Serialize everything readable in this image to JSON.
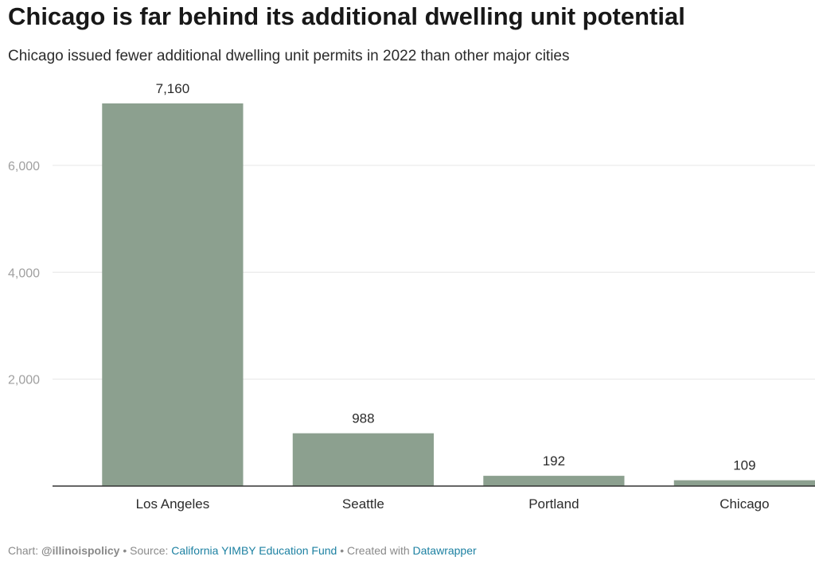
{
  "chart_data": {
    "type": "bar",
    "title": "Chicago is far behind its additional dwelling unit potential",
    "subtitle": "Chicago issued fewer additional dwelling unit permits in 2022 than other major cities",
    "categories": [
      "Los Angeles",
      "Seattle",
      "Portland",
      "Chicago"
    ],
    "values": [
      7160,
      988,
      192,
      109
    ],
    "value_labels": [
      "7,160",
      "988",
      "192",
      "109"
    ],
    "y_ticks": [
      2000,
      4000,
      6000
    ],
    "y_tick_labels": [
      "2,000",
      "4,000",
      "6,000"
    ],
    "ylim": [
      0,
      7160
    ],
    "grid": true,
    "bar_color": "#8ca08f",
    "xlabel": "",
    "ylabel": ""
  },
  "footer": {
    "chart_prefix": "Chart: ",
    "chart_author": "@illinoispolicy",
    "sep1": " • Source: ",
    "source": "California YIMBY Education Fund",
    "sep2": " • Created with ",
    "tool": "Datawrapper"
  }
}
